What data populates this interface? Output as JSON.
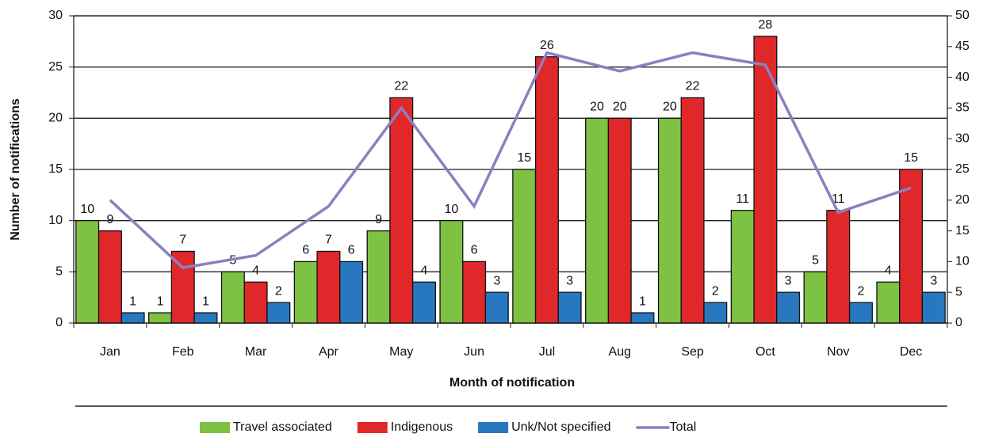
{
  "chart_data": {
    "type": "bar",
    "x_label": "Month of notification",
    "y_label": "Number of notifications",
    "categories": [
      "Jan",
      "Feb",
      "Mar",
      "Apr",
      "May",
      "Jun",
      "Jul",
      "Aug",
      "Sep",
      "Oct",
      "Nov",
      "Dec"
    ],
    "series": [
      {
        "name": "Travel associated",
        "type": "bar",
        "color": "#7dc242",
        "values": [
          10,
          1,
          5,
          6,
          9,
          10,
          15,
          20,
          20,
          11,
          5,
          4
        ]
      },
      {
        "name": "Indigenous",
        "type": "bar",
        "color": "#e0282b",
        "values": [
          9,
          7,
          4,
          7,
          22,
          6,
          26,
          20,
          22,
          28,
          11,
          15
        ]
      },
      {
        "name": "Unk/Not specified",
        "type": "bar",
        "color": "#2878c0",
        "values": [
          1,
          1,
          2,
          6,
          4,
          3,
          3,
          1,
          2,
          3,
          2,
          3
        ]
      },
      {
        "name": "Total",
        "type": "line",
        "axis": "y2",
        "color": "#8c7fc1",
        "values": [
          20,
          9,
          11,
          19,
          35,
          19,
          44,
          41,
          44,
          42,
          18,
          22
        ]
      }
    ],
    "ylim": [
      0,
      30
    ],
    "yticks": [
      0,
      5,
      10,
      15,
      20,
      25,
      30
    ],
    "y2lim": [
      0,
      50
    ],
    "y2ticks": [
      0,
      5,
      10,
      15,
      20,
      25,
      30,
      35,
      40,
      45,
      50
    ],
    "grid": true,
    "legend": "bottom"
  }
}
